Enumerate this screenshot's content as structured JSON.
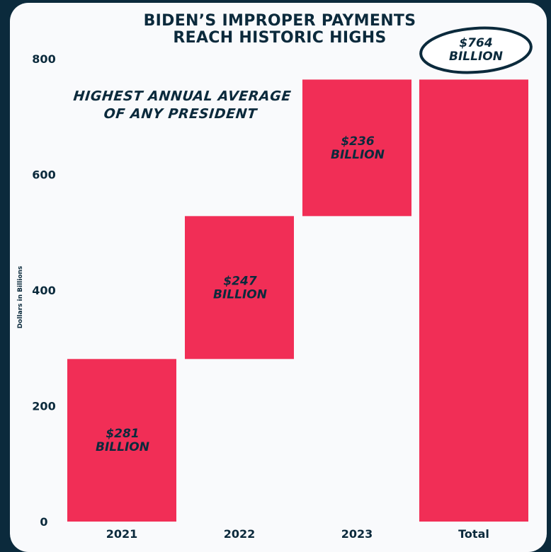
{
  "chart_data": {
    "type": "bar",
    "title": [
      "BIDEN’S IMPROPER PAYMENTS",
      "REACH HISTORIC HIGHS"
    ],
    "ylabel": "Dollars in Billions",
    "xlabel": "",
    "ylim": [
      0,
      800
    ],
    "yticks": [
      0,
      200,
      400,
      600,
      800
    ],
    "categories": [
      "2021",
      "2022",
      "2023",
      "Total"
    ],
    "bars": [
      {
        "category": "2021",
        "start": 0,
        "end": 281,
        "label": [
          "$281",
          "BILLION"
        ]
      },
      {
        "category": "2022",
        "start": 281,
        "end": 528,
        "label": [
          "$247",
          "BILLION"
        ]
      },
      {
        "category": "2023",
        "start": 528,
        "end": 764,
        "label": [
          "$236",
          "BILLION"
        ]
      },
      {
        "category": "Total",
        "start": 0,
        "end": 764,
        "label": [
          "$764",
          "BILLION"
        ]
      }
    ],
    "annotation": [
      "HIGHEST ANNUAL AVERAGE",
      "OF ANY PRESIDENT"
    ],
    "grid": false,
    "legend": "none"
  },
  "colors": {
    "bar": "#f12e56",
    "text": "#0b2a3c",
    "background": "#f9fafc",
    "frame": "#0b2a3c"
  }
}
